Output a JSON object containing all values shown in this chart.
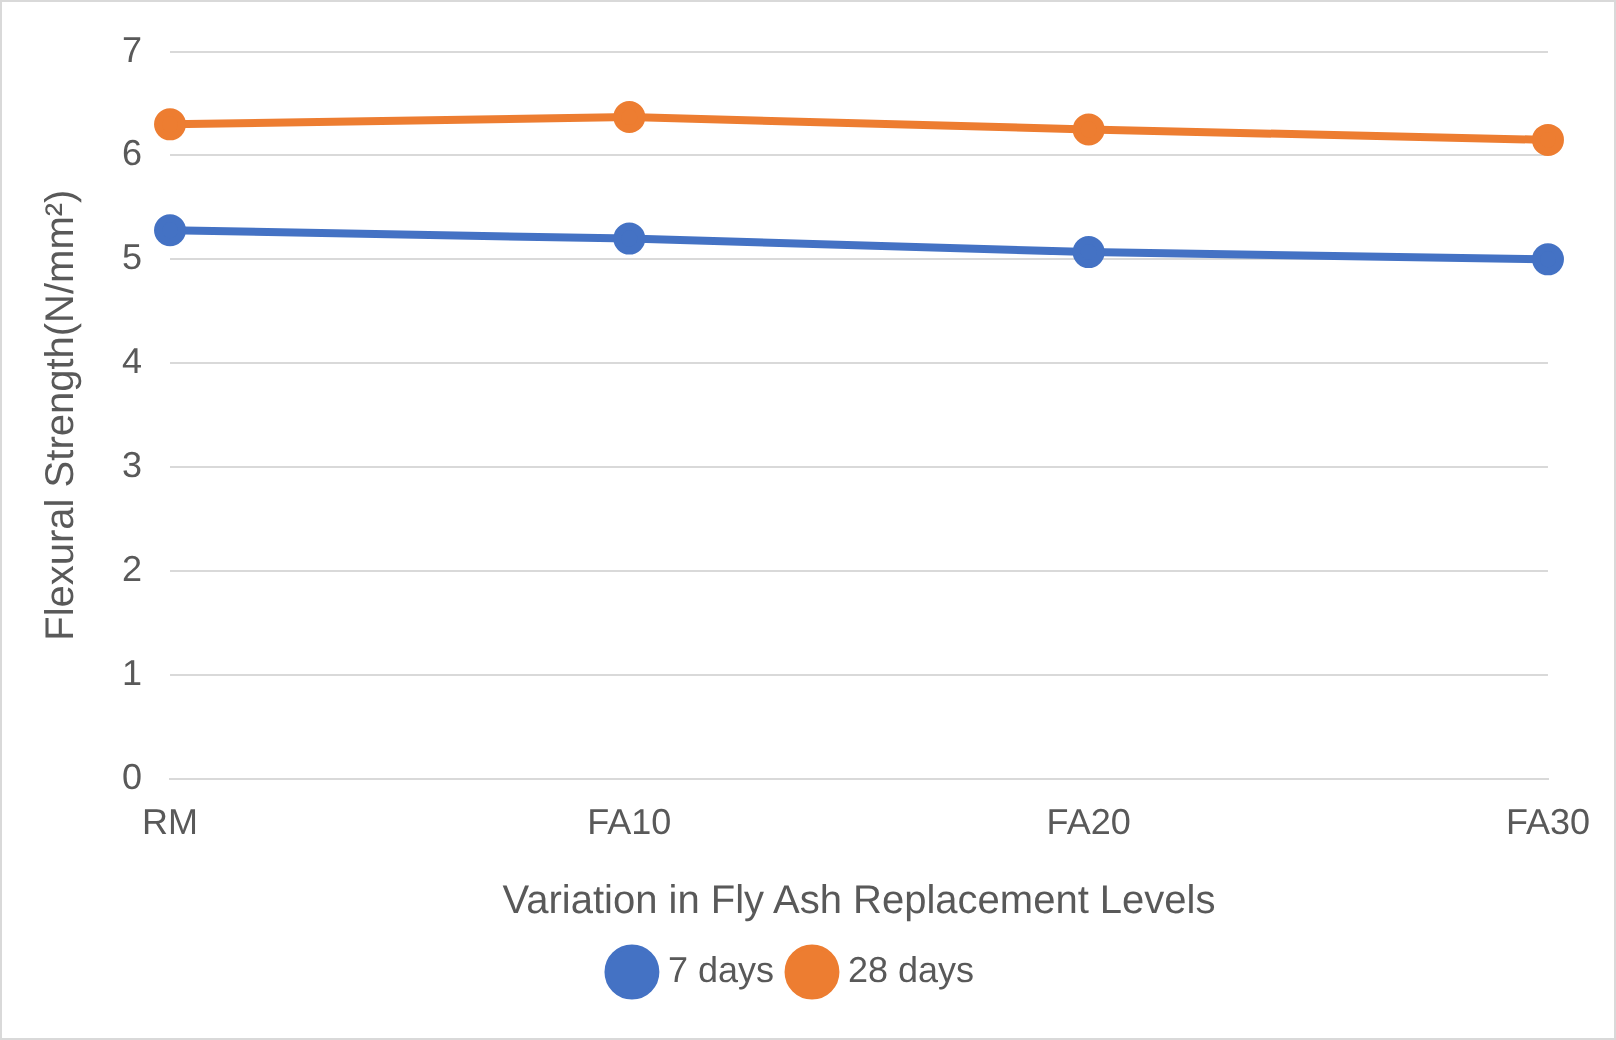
{
  "chart_data": {
    "type": "line",
    "xlabel": "Variation in Fly Ash Replacement Levels",
    "ylabel": "Flexural Strength(N/mm²)",
    "categories": [
      "RM",
      "FA10",
      "FA20",
      "FA30"
    ],
    "series": [
      {
        "name": "7 days",
        "color": "#4472c4",
        "values": [
          5.28,
          5.2,
          5.07,
          5.0
        ]
      },
      {
        "name": "28 days",
        "color": "#ed7d31",
        "values": [
          6.3,
          6.37,
          6.25,
          6.15
        ]
      }
    ],
    "ylim": [
      0,
      7
    ],
    "yticks": [
      0,
      1,
      2,
      3,
      4,
      5,
      6,
      7
    ],
    "grid": "y",
    "legend": "bottom",
    "marker": "circle",
    "line_style": "solid"
  }
}
